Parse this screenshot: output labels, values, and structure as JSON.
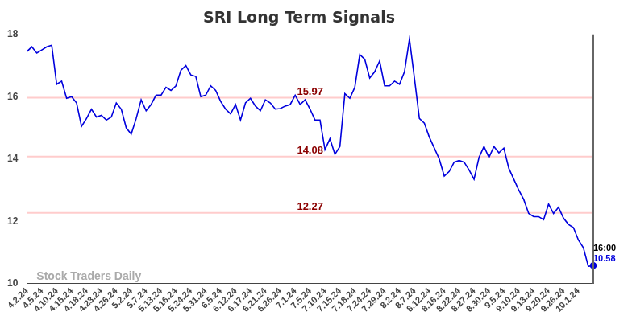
{
  "chart_data": {
    "type": "line",
    "title": "SRI Long Term Signals",
    "categories": [
      "4.2.24",
      null,
      null,
      "4.5.24",
      null,
      null,
      "4.10.24",
      null,
      null,
      "4.15.24",
      null,
      null,
      "4.18.24",
      null,
      null,
      "4.23.24",
      null,
      null,
      "4.26.24",
      null,
      null,
      "5.2.24",
      null,
      null,
      "5.7.24",
      null,
      null,
      "5.13.24",
      null,
      null,
      "5.16.24",
      null,
      null,
      "5.24.24",
      null,
      null,
      "5.31.24",
      null,
      null,
      "6.5.24",
      null,
      null,
      "6.12.24",
      null,
      null,
      "6.17.24",
      null,
      null,
      "6.21.24",
      null,
      null,
      "6.26.24",
      null,
      null,
      "7.1.24",
      null,
      null,
      "7.5.24",
      null,
      null,
      "7.10.24",
      null,
      null,
      "7.15.24",
      null,
      null,
      "7.18.24",
      null,
      null,
      "7.24.24",
      null,
      null,
      "7.29.24",
      null,
      null,
      "8.2.24",
      null,
      null,
      "8.7.24",
      null,
      null,
      "8.12.24",
      null,
      null,
      "8.16.24",
      null,
      null,
      "8.22.24",
      null,
      null,
      "8.27.24",
      null,
      null,
      "8.30.24",
      null,
      null,
      "9.5.24",
      null,
      null,
      "9.10.24",
      null,
      null,
      "9.13.24",
      null,
      null,
      "9.20.24",
      null,
      null,
      "9.26.24",
      null,
      null,
      "10.1.24",
      null,
      null,
      null
    ],
    "values": [
      17.45,
      17.6,
      17.4,
      17.5,
      17.6,
      17.65,
      16.4,
      16.5,
      15.95,
      16.0,
      15.8,
      15.05,
      15.3,
      15.6,
      15.35,
      15.4,
      15.25,
      15.35,
      15.8,
      15.6,
      15.0,
      14.8,
      15.3,
      15.9,
      15.55,
      15.75,
      16.05,
      16.05,
      16.3,
      16.2,
      16.35,
      16.85,
      17.0,
      16.7,
      16.65,
      16.0,
      16.05,
      16.35,
      16.2,
      15.85,
      15.6,
      15.45,
      15.75,
      15.25,
      15.8,
      15.95,
      15.7,
      15.55,
      15.9,
      15.8,
      15.6,
      15.62,
      15.7,
      15.75,
      16.05,
      15.75,
      15.9,
      15.6,
      15.25,
      15.25,
      14.3,
      14.65,
      14.15,
      14.4,
      16.1,
      15.95,
      16.3,
      17.35,
      17.2,
      16.6,
      16.8,
      17.15,
      16.35,
      16.35,
      16.5,
      16.4,
      16.8,
      17.85,
      16.6,
      15.3,
      15.15,
      14.7,
      14.35,
      14.0,
      13.45,
      13.6,
      13.9,
      13.95,
      13.9,
      13.65,
      13.35,
      14.05,
      14.4,
      14.05,
      14.4,
      14.2,
      14.35,
      13.7,
      13.35,
      13.0,
      12.7,
      12.25,
      12.15,
      12.15,
      12.05,
      12.55,
      12.25,
      12.45,
      12.1,
      11.9,
      11.8,
      11.4,
      11.15,
      10.55,
      10.58
    ],
    "color": "#0000dd",
    "ylim": [
      10,
      18
    ],
    "yticks": [
      10,
      12,
      14,
      16,
      18
    ],
    "grid": false,
    "reference_lines": [
      15.97,
      14.08,
      12.27
    ],
    "end_time": "16:00",
    "watermark": "Stock Traders Daily"
  }
}
